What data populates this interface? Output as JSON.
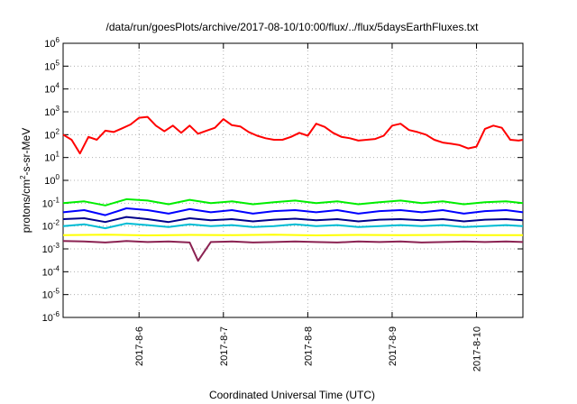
{
  "chart_data": {
    "type": "line",
    "title": "/data/run/goesPlots/archive/2017-08-10/10:00/flux/../flux/5daysEarthFluxes.txt",
    "xlabel": "Coordinated Universal Time (UTC)",
    "ylabel": {
      "base": "protons/cm",
      "sup": "2",
      "rest": "-s-sr-MeV"
    },
    "yscale": "log",
    "ylim": [
      1e-06,
      1000000.0
    ],
    "xlim": [
      0,
      5.45
    ],
    "x_ticks": [
      {
        "x": 0.9,
        "label": "2017-8-6"
      },
      {
        "x": 1.9,
        "label": "2017-8-7"
      },
      {
        "x": 2.9,
        "label": "2017-8-8"
      },
      {
        "x": 3.9,
        "label": "2017-8-9"
      },
      {
        "x": 4.9,
        "label": "2017-8-10"
      }
    ],
    "y_ticks": [
      {
        "base": "10",
        "exp": "-6",
        "v": -6
      },
      {
        "base": "10",
        "exp": "-5",
        "v": -5
      },
      {
        "base": "10",
        "exp": "-4",
        "v": -4
      },
      {
        "base": "10",
        "exp": "-3",
        "v": -3
      },
      {
        "base": "10",
        "exp": "-2",
        "v": -2
      },
      {
        "base": "10",
        "exp": "-1",
        "v": -1
      },
      {
        "base": "10",
        "exp": "0",
        "v": 0
      },
      {
        "base": "10",
        "exp": "1",
        "v": 1
      },
      {
        "base": "10",
        "exp": "2",
        "v": 2
      },
      {
        "base": "10",
        "exp": "3",
        "v": 3
      },
      {
        "base": "10",
        "exp": "4",
        "v": 4
      },
      {
        "base": "10",
        "exp": "5",
        "v": 5
      },
      {
        "base": "10",
        "exp": "6",
        "v": 6
      }
    ],
    "grid": true,
    "legend": "none",
    "series": [
      {
        "color": "#ff0000",
        "x": [
          0,
          0.1,
          0.2,
          0.3,
          0.4,
          0.5,
          0.6,
          0.7,
          0.8,
          0.9,
          1.0,
          1.1,
          1.2,
          1.3,
          1.4,
          1.5,
          1.6,
          1.7,
          1.8,
          1.9,
          2.0,
          2.1,
          2.2,
          2.3,
          2.4,
          2.5,
          2.6,
          2.7,
          2.8,
          2.9,
          3.0,
          3.1,
          3.2,
          3.3,
          3.4,
          3.5,
          3.6,
          3.7,
          3.8,
          3.9,
          4.0,
          4.1,
          4.2,
          4.3,
          4.4,
          4.5,
          4.6,
          4.7,
          4.8,
          4.9,
          5.0,
          5.1,
          5.2,
          5.3,
          5.4,
          5.45
        ],
        "y": [
          100,
          60,
          15,
          80,
          60,
          150,
          130,
          190,
          280,
          550,
          600,
          250,
          140,
          250,
          120,
          250,
          110,
          150,
          200,
          480,
          260,
          230,
          130,
          90,
          70,
          60,
          60,
          80,
          120,
          90,
          300,
          220,
          120,
          80,
          70,
          55,
          60,
          65,
          90,
          250,
          300,
          160,
          130,
          100,
          60,
          45,
          40,
          35,
          25,
          30,
          180,
          250,
          200,
          60,
          55,
          60
        ]
      },
      {
        "color": "#00ee00",
        "x": [
          0,
          0.25,
          0.5,
          0.75,
          1.0,
          1.25,
          1.5,
          1.75,
          2.0,
          2.25,
          2.5,
          2.75,
          3.0,
          3.25,
          3.5,
          3.75,
          4.0,
          4.25,
          4.5,
          4.75,
          5.0,
          5.25,
          5.45
        ],
        "y": [
          0.1,
          0.12,
          0.08,
          0.15,
          0.13,
          0.09,
          0.14,
          0.1,
          0.12,
          0.09,
          0.11,
          0.13,
          0.1,
          0.12,
          0.09,
          0.11,
          0.13,
          0.1,
          0.12,
          0.09,
          0.11,
          0.12,
          0.1
        ]
      },
      {
        "color": "#0000ff",
        "x": [
          0,
          0.25,
          0.5,
          0.75,
          1.0,
          1.25,
          1.5,
          1.75,
          2.0,
          2.25,
          2.5,
          2.75,
          3.0,
          3.25,
          3.5,
          3.75,
          4.0,
          4.25,
          4.5,
          4.75,
          5.0,
          5.25,
          5.45
        ],
        "y": [
          0.04,
          0.05,
          0.03,
          0.06,
          0.05,
          0.035,
          0.055,
          0.04,
          0.05,
          0.035,
          0.045,
          0.05,
          0.04,
          0.05,
          0.035,
          0.045,
          0.05,
          0.04,
          0.05,
          0.035,
          0.045,
          0.05,
          0.04
        ]
      },
      {
        "color": "#00008b",
        "x": [
          0,
          0.25,
          0.5,
          0.75,
          1.0,
          1.25,
          1.5,
          1.75,
          2.0,
          2.25,
          2.5,
          2.75,
          3.0,
          3.25,
          3.5,
          3.75,
          4.0,
          4.25,
          4.5,
          4.75,
          5.0,
          5.25,
          5.45
        ],
        "y": [
          0.02,
          0.022,
          0.015,
          0.025,
          0.02,
          0.015,
          0.022,
          0.018,
          0.02,
          0.016,
          0.019,
          0.021,
          0.018,
          0.02,
          0.016,
          0.019,
          0.02,
          0.018,
          0.02,
          0.016,
          0.019,
          0.02,
          0.018
        ]
      },
      {
        "color": "#00bcd4",
        "x": [
          0,
          0.25,
          0.5,
          0.75,
          1.0,
          1.25,
          1.5,
          1.75,
          2.0,
          2.25,
          2.5,
          2.75,
          3.0,
          3.25,
          3.5,
          3.75,
          4.0,
          4.25,
          4.5,
          4.75,
          5.0,
          5.25,
          5.45
        ],
        "y": [
          0.01,
          0.012,
          0.008,
          0.013,
          0.011,
          0.009,
          0.012,
          0.01,
          0.011,
          0.009,
          0.01,
          0.012,
          0.01,
          0.011,
          0.009,
          0.01,
          0.011,
          0.01,
          0.011,
          0.009,
          0.01,
          0.011,
          0.01
        ]
      },
      {
        "color": "#ffff00",
        "x": [
          0,
          0.5,
          1.0,
          1.5,
          2.0,
          2.5,
          3.0,
          3.5,
          4.0,
          4.5,
          5.0,
          5.45
        ],
        "y": [
          0.004,
          0.0042,
          0.0039,
          0.0041,
          0.004,
          0.0042,
          0.0039,
          0.0041,
          0.004,
          0.0041,
          0.004,
          0.004
        ]
      },
      {
        "color": "#8b2252",
        "x": [
          0,
          0.25,
          0.5,
          0.75,
          1.0,
          1.25,
          1.5,
          1.6,
          1.75,
          2.0,
          2.25,
          2.5,
          2.75,
          3.0,
          3.25,
          3.5,
          3.75,
          4.0,
          4.25,
          4.5,
          4.75,
          5.0,
          5.25,
          5.45
        ],
        "y": [
          0.0022,
          0.0021,
          0.0019,
          0.0022,
          0.002,
          0.0021,
          0.0019,
          0.0003,
          0.002,
          0.0021,
          0.0019,
          0.002,
          0.0021,
          0.002,
          0.0019,
          0.0021,
          0.002,
          0.0021,
          0.0019,
          0.002,
          0.0021,
          0.002,
          0.0021,
          0.002
        ]
      }
    ]
  }
}
